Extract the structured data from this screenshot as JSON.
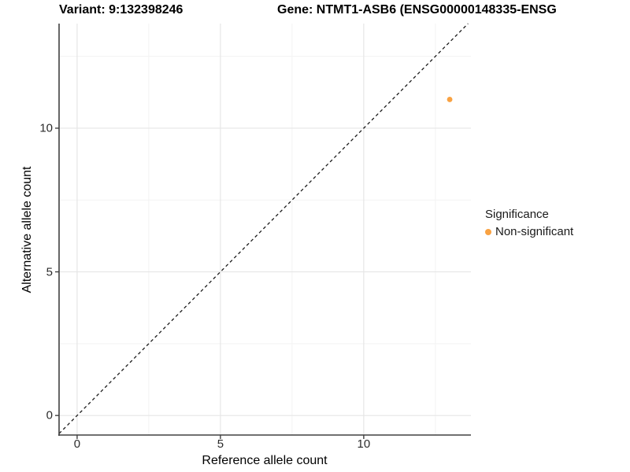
{
  "titles": {
    "variant": "Variant: 9:132398246",
    "gene": "Gene: NTMT1-ASB6 (ENSG00000148335-ENSG"
  },
  "legend": {
    "title": "Significance",
    "entries": [
      {
        "label": "Non-significant",
        "color": "#F9A242"
      }
    ]
  },
  "colors": {
    "point": "#F9A242",
    "axis_line": "#404040",
    "tick_mark": "#404040",
    "grid_major": "#e6e6e6",
    "grid_minor": "#f3f3f3",
    "identity_line": "#1a1a1a",
    "text": "#000000"
  },
  "chart_data": {
    "type": "scatter",
    "title_left": "Variant: 9:132398246",
    "title_right": "Gene: NTMT1-ASB6 (ENSG00000148335-ENSG",
    "xlabel": "Reference allele count",
    "ylabel": "Alternative allele count",
    "xlim": [
      -0.63,
      13.74
    ],
    "ylim": [
      -0.68,
      13.64
    ],
    "xticks": [
      0,
      5,
      10
    ],
    "yticks": [
      0,
      5,
      10
    ],
    "xticks_minor": [
      2.5,
      7.5,
      12.5
    ],
    "yticks_minor": [
      2.5,
      7.5,
      12.5
    ],
    "grid": true,
    "legend_position": "right",
    "series": [
      {
        "name": "Non-significant",
        "color": "#F9A242",
        "points": [
          {
            "x": 13,
            "y": 11
          }
        ]
      }
    ],
    "reference_line": {
      "kind": "identity",
      "slope": 1,
      "intercept": 0,
      "style": "dashed"
    }
  }
}
